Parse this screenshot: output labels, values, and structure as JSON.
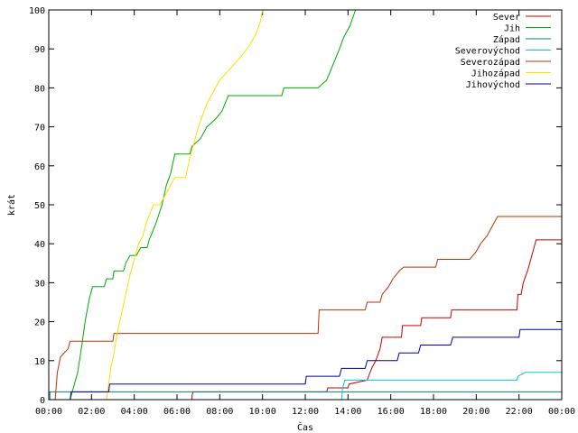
{
  "chart_data": {
    "type": "line",
    "step": true,
    "xlabel": "Čas",
    "ylabel": "krát",
    "xlim": [
      0,
      24
    ],
    "ylim": [
      0,
      100
    ],
    "x_ticks": [
      0,
      2,
      4,
      6,
      8,
      10,
      12,
      14,
      16,
      18,
      20,
      22,
      24
    ],
    "x_tick_labels": [
      "00:00",
      "02:00",
      "04:00",
      "06:00",
      "08:00",
      "10:00",
      "12:00",
      "14:00",
      "16:00",
      "18:00",
      "20:00",
      "22:00",
      "00:00"
    ],
    "y_ticks": [
      0,
      10,
      20,
      30,
      40,
      50,
      60,
      70,
      80,
      90,
      100
    ],
    "y_tick_labels": [
      "0",
      "10",
      "20",
      "30",
      "40",
      "50",
      "60",
      "70",
      "80",
      "90",
      "100"
    ],
    "grid": false,
    "legend": "top-right",
    "series": [
      {
        "name": "Sever",
        "color": "#cc0000",
        "points": [
          [
            0,
            0
          ],
          [
            6.7,
            0
          ],
          [
            6.7,
            1
          ],
          [
            6.75,
            2
          ],
          [
            13.0,
            2
          ],
          [
            13.05,
            3
          ],
          [
            14.0,
            3
          ],
          [
            14.05,
            4
          ],
          [
            14.9,
            5
          ],
          [
            15.1,
            8
          ],
          [
            15.3,
            10
          ],
          [
            15.5,
            13
          ],
          [
            15.6,
            16
          ],
          [
            16.5,
            16
          ],
          [
            16.55,
            19
          ],
          [
            17.4,
            19
          ],
          [
            17.45,
            21
          ],
          [
            18.8,
            21
          ],
          [
            18.85,
            23
          ],
          [
            21.9,
            23
          ],
          [
            21.95,
            27
          ],
          [
            22.1,
            27
          ],
          [
            22.2,
            30
          ],
          [
            22.4,
            33
          ],
          [
            22.6,
            37
          ],
          [
            22.8,
            41
          ],
          [
            24.0,
            41
          ]
        ]
      },
      {
        "name": "Jih",
        "color": "#00aa00",
        "points": [
          [
            0,
            0
          ],
          [
            1.0,
            0
          ],
          [
            1.2,
            4
          ],
          [
            1.35,
            7
          ],
          [
            1.55,
            14
          ],
          [
            1.7,
            20
          ],
          [
            1.9,
            26
          ],
          [
            2.05,
            29
          ],
          [
            2.6,
            29
          ],
          [
            2.7,
            31
          ],
          [
            3.0,
            31
          ],
          [
            3.05,
            33
          ],
          [
            3.5,
            33
          ],
          [
            3.6,
            35
          ],
          [
            3.8,
            37
          ],
          [
            4.1,
            37
          ],
          [
            4.3,
            39
          ],
          [
            4.6,
            39
          ],
          [
            4.7,
            41
          ],
          [
            5.0,
            45
          ],
          [
            5.3,
            50
          ],
          [
            5.5,
            55
          ],
          [
            5.7,
            58
          ],
          [
            5.9,
            63
          ],
          [
            6.6,
            63
          ],
          [
            6.7,
            65
          ],
          [
            7.1,
            67
          ],
          [
            7.4,
            70
          ],
          [
            7.8,
            72
          ],
          [
            8.1,
            74
          ],
          [
            8.4,
            78
          ],
          [
            9.9,
            78
          ],
          [
            10.9,
            78
          ],
          [
            11.0,
            80
          ],
          [
            12.6,
            80
          ],
          [
            13.0,
            82
          ],
          [
            13.3,
            86
          ],
          [
            13.6,
            90
          ],
          [
            13.8,
            93
          ],
          [
            14.1,
            96
          ],
          [
            14.35,
            100
          ]
        ]
      },
      {
        "name": "Západ",
        "color": "#008080",
        "points": [
          [
            0,
            0
          ],
          [
            0.05,
            0
          ],
          [
            0.05,
            2
          ],
          [
            24.0,
            2
          ]
        ]
      },
      {
        "name": "Severovýchod",
        "color": "#00cccc",
        "points": [
          [
            0,
            0
          ],
          [
            13.7,
            0
          ],
          [
            13.75,
            3
          ],
          [
            13.85,
            5
          ],
          [
            21.9,
            5
          ],
          [
            21.95,
            6
          ],
          [
            22.3,
            7
          ],
          [
            24.0,
            7
          ]
        ]
      },
      {
        "name": "Severozápad",
        "color": "#bb3300",
        "points": [
          [
            0,
            0
          ],
          [
            0.3,
            0
          ],
          [
            0.4,
            7
          ],
          [
            0.55,
            11
          ],
          [
            0.9,
            13
          ],
          [
            1.0,
            15
          ],
          [
            3.0,
            15
          ],
          [
            3.05,
            17
          ],
          [
            12.6,
            17
          ],
          [
            12.65,
            23
          ],
          [
            14.8,
            23
          ],
          [
            14.9,
            25
          ],
          [
            15.5,
            25
          ],
          [
            15.6,
            27
          ],
          [
            15.9,
            29
          ],
          [
            16.1,
            31
          ],
          [
            16.4,
            33
          ],
          [
            16.6,
            34
          ],
          [
            18.1,
            34
          ],
          [
            18.2,
            36
          ],
          [
            19.7,
            36
          ],
          [
            20.0,
            38
          ],
          [
            20.2,
            40
          ],
          [
            20.5,
            42
          ],
          [
            20.7,
            44
          ],
          [
            20.9,
            46
          ],
          [
            21.0,
            47
          ],
          [
            24.0,
            47
          ]
        ]
      },
      {
        "name": "Jihozápad",
        "color": "#ffdd00",
        "points": [
          [
            0,
            0
          ],
          [
            2.7,
            0
          ],
          [
            2.8,
            4
          ],
          [
            2.9,
            8
          ],
          [
            3.05,
            12
          ],
          [
            3.2,
            17
          ],
          [
            3.4,
            22
          ],
          [
            3.6,
            27
          ],
          [
            3.8,
            32
          ],
          [
            4.0,
            36
          ],
          [
            4.2,
            40
          ],
          [
            4.4,
            42
          ],
          [
            4.6,
            46
          ],
          [
            4.9,
            50
          ],
          [
            5.2,
            50
          ],
          [
            5.4,
            52
          ],
          [
            5.7,
            55
          ],
          [
            5.9,
            57
          ],
          [
            6.4,
            57
          ],
          [
            6.6,
            62
          ],
          [
            6.8,
            66
          ],
          [
            7.0,
            70
          ],
          [
            7.2,
            73
          ],
          [
            7.4,
            76
          ],
          [
            7.6,
            78
          ],
          [
            7.8,
            80
          ],
          [
            8.0,
            82
          ],
          [
            8.5,
            85
          ],
          [
            9.0,
            88
          ],
          [
            9.4,
            91
          ],
          [
            9.7,
            94
          ],
          [
            9.9,
            97
          ],
          [
            10.0,
            100
          ]
        ]
      },
      {
        "name": "Jihovýchod",
        "color": "#000099",
        "points": [
          [
            0,
            0
          ],
          [
            1.0,
            0
          ],
          [
            1.05,
            2
          ],
          [
            2.8,
            2
          ],
          [
            2.85,
            4
          ],
          [
            12.0,
            4
          ],
          [
            12.05,
            6
          ],
          [
            13.6,
            6
          ],
          [
            13.7,
            8
          ],
          [
            14.8,
            8
          ],
          [
            14.9,
            10
          ],
          [
            16.3,
            10
          ],
          [
            16.4,
            12
          ],
          [
            17.3,
            12
          ],
          [
            17.4,
            14
          ],
          [
            18.8,
            14
          ],
          [
            18.9,
            16
          ],
          [
            22.0,
            16
          ],
          [
            22.05,
            18
          ],
          [
            24.0,
            18
          ]
        ]
      }
    ]
  }
}
